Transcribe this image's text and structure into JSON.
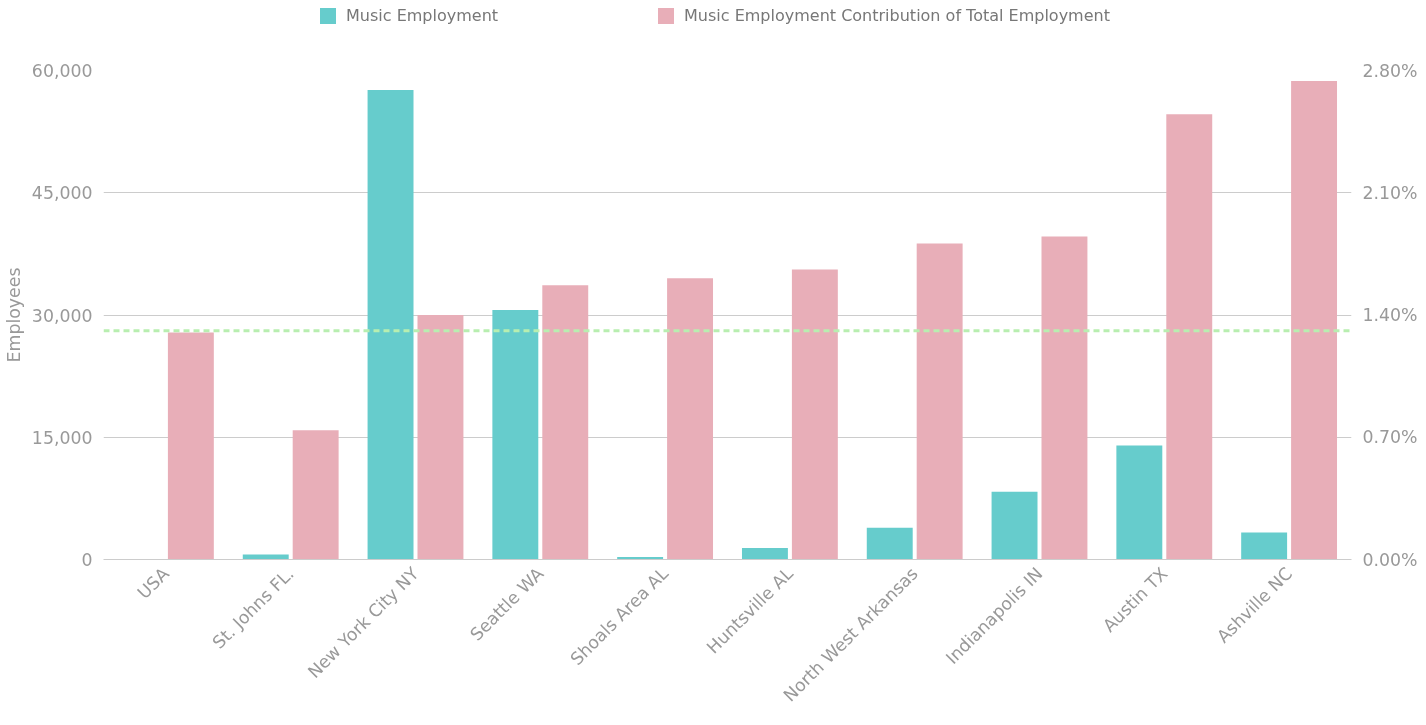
{
  "chart_data": {
    "type": "bar",
    "ylabel": "Employees",
    "categories": [
      "USA",
      "St. Johns FL.",
      "New York City NY",
      "Seattle WA",
      "Shoals Area AL",
      "Huntsville AL",
      "North West Arkansas",
      "Indianapolis IN",
      "Austin TX",
      "Ashville NC"
    ],
    "series": [
      {
        "name": "Music Employment",
        "color": "#66cccc",
        "values": [
          null,
          600,
          57600,
          30600,
          300,
          1400,
          3900,
          8300,
          14000,
          3300
        ]
      },
      {
        "name": "Music Employment Contribution of Total Employment",
        "color": "#e8aeb8",
        "axis": "y2",
        "values": [
          1.3,
          0.74,
          1.4,
          1.57,
          1.61,
          1.66,
          1.81,
          1.85,
          2.55,
          2.74
        ]
      }
    ],
    "ylim": [
      0,
      60000
    ],
    "yticks": [
      {
        "value": 0,
        "label": "0"
      },
      {
        "value": 15000,
        "label": "15,000"
      },
      {
        "value": 30000,
        "label": "30,000"
      },
      {
        "value": 45000,
        "label": "45,000"
      },
      {
        "value": 60000,
        "label": "60,000"
      }
    ],
    "y2lim": [
      0,
      2.8
    ],
    "y2ticks": [
      {
        "value": 0,
        "label": "0.00%"
      },
      {
        "value": 0.7,
        "label": "0.70%"
      },
      {
        "value": 1.4,
        "label": "1.40%"
      },
      {
        "value": 2.1,
        "label": "2.10%"
      },
      {
        "value": 2.8,
        "label": "2.80%"
      }
    ],
    "ref_lines": [
      {
        "axis": "y2",
        "value": 1.31,
        "color": "#b8eeb0",
        "line_style": "dashed"
      }
    ],
    "grid": "y",
    "legend": "top"
  }
}
